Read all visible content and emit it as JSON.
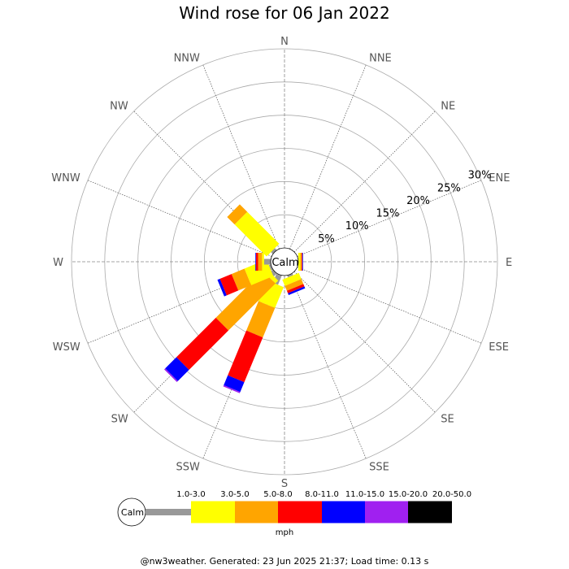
{
  "chart_data": {
    "type": "windrose",
    "title": "Wind rose for 06 Jan 2022",
    "directions": [
      "N",
      "NNE",
      "NE",
      "ENE",
      "E",
      "ESE",
      "SE",
      "SSE",
      "S",
      "SSW",
      "SW",
      "WSW",
      "W",
      "WNW",
      "NW",
      "NNW"
    ],
    "radial_ticks": [
      "5%",
      "10%",
      "15%",
      "20%",
      "25%",
      "30%"
    ],
    "radial_max": 30,
    "calm_label": "Calm",
    "units": "mph",
    "speed_bins": [
      {
        "label": "1.0-3.0",
        "color": "#999999"
      },
      {
        "label": "3.0-5.0",
        "color": "#ffff00"
      },
      {
        "label": "5.0-8.0",
        "color": "#ffa500"
      },
      {
        "label": "8.0-11.0",
        "color": "#ff0000"
      },
      {
        "label": "11.0-15.0",
        "color": "#0000ff"
      },
      {
        "label": "15.0-20.0",
        "color": "#a020f0"
      },
      {
        "label": "20.0-50.0",
        "color": "#000000"
      }
    ],
    "series_cumulative": {
      "N": [
        0,
        0,
        0,
        0,
        0,
        0,
        0
      ],
      "NNE": [
        0,
        0,
        0,
        0,
        0,
        0,
        0
      ],
      "NE": [
        0,
        0,
        0,
        0,
        0,
        0,
        0
      ],
      "ENE": [
        0,
        0,
        0,
        0,
        0,
        0,
        0
      ],
      "E": [
        0,
        0.3,
        0.5,
        0.6,
        0.7,
        0.7,
        0.7
      ],
      "ESE": [
        0,
        0,
        0,
        0,
        0,
        0,
        0
      ],
      "SE": [
        0,
        0,
        0,
        0,
        0,
        0,
        0
      ],
      "SSE": [
        0.3,
        1.3,
        2.1,
        2.5,
        2.8,
        2.8,
        2.8
      ],
      "S": [
        0,
        0,
        0,
        0,
        0,
        0,
        0
      ],
      "SSW": [
        1.5,
        4.9,
        9.7,
        17.0,
        18.6,
        18.8,
        18.8
      ],
      "SW": [
        0.6,
        1.2,
        11.2,
        19.6,
        22.0,
        22.2,
        22.2
      ],
      "WSW": [
        0.3,
        3.9,
        6.0,
        7.9,
        8.3,
        8.3,
        8.3
      ],
      "W": [
        1.0,
        1.3,
        1.9,
        2.2,
        2.3,
        2.3,
        2.3
      ],
      "WNW": [
        0,
        0,
        0,
        0,
        0,
        0,
        0
      ],
      "NW": [
        0.4,
        7.2,
        8.8,
        8.8,
        8.8,
        8.8,
        8.8
      ],
      "NNW": [
        0,
        0,
        0,
        0,
        0,
        0,
        0
      ]
    }
  },
  "footer": "@nw3weather. Generated: 23 Jun 2025 21:37; Load time: 0.13 s"
}
